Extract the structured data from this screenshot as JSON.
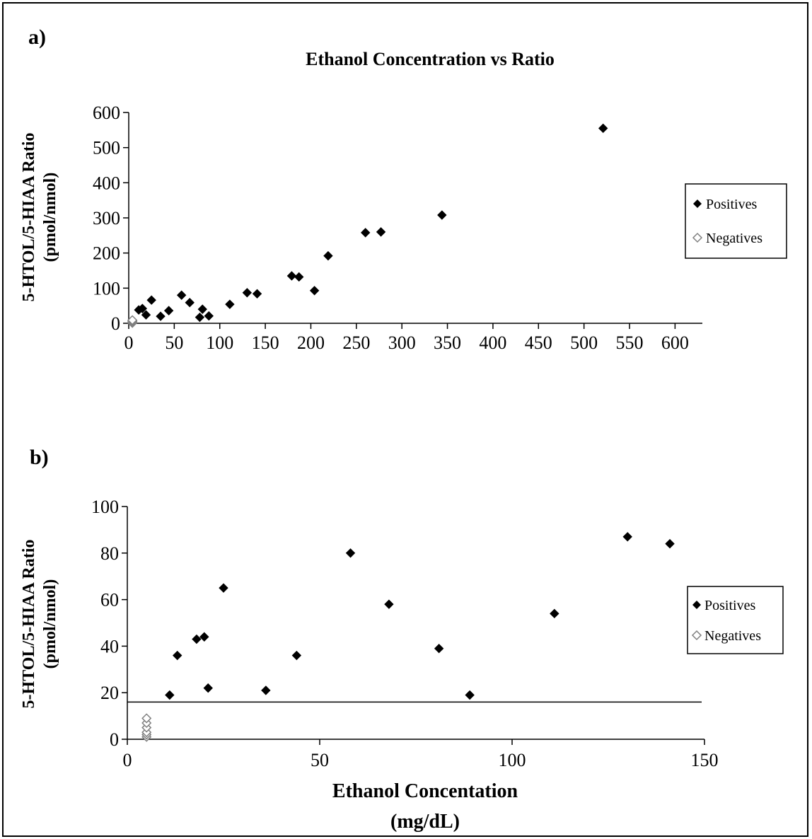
{
  "chart_data": [
    {
      "type": "scatter",
      "panel_label": "a)",
      "title": "Ethanol Concentration vs Ratio",
      "ylabel_line1": "5-HTOL/5-HIAA Ratio",
      "ylabel_line2": "(pmol/nmol)",
      "xlim": [
        0,
        630
      ],
      "ylim": [
        0,
        600
      ],
      "xticks": [
        0,
        50,
        100,
        150,
        200,
        250,
        300,
        350,
        400,
        450,
        500,
        550,
        600
      ],
      "yticks": [
        0,
        100,
        200,
        300,
        400,
        500,
        600
      ],
      "legend": {
        "placement": "right",
        "entries": [
          "Positives",
          "Negatives"
        ]
      },
      "series": [
        {
          "name": "Positives",
          "color": "#000000",
          "marker": "filled-diamond",
          "points": [
            [
              11,
              38
            ],
            [
              15,
              42
            ],
            [
              19,
              24
            ],
            [
              25,
              66
            ],
            [
              35,
              20
            ],
            [
              44,
              36
            ],
            [
              58,
              80
            ],
            [
              67,
              59
            ],
            [
              78,
              17
            ],
            [
              81,
              40
            ],
            [
              88,
              21
            ],
            [
              111,
              54
            ],
            [
              130,
              87
            ],
            [
              141,
              84
            ],
            [
              179,
              135
            ],
            [
              187,
              132
            ],
            [
              204,
              93
            ],
            [
              219,
              192
            ],
            [
              260,
              258
            ],
            [
              277,
              260
            ],
            [
              344,
              308
            ],
            [
              521,
              555
            ]
          ]
        },
        {
          "name": "Negatives",
          "color": "#808080",
          "marker": "open-diamond",
          "points": [
            [
              4,
              1
            ],
            [
              4,
              3
            ],
            [
              4,
              5
            ],
            [
              4,
              7
            ],
            [
              4,
              9
            ]
          ]
        }
      ]
    },
    {
      "type": "scatter",
      "panel_label": "b)",
      "title": "",
      "ylabel_line1": "5-HTOL/5-HIAA Ratio",
      "ylabel_line2": "(pmol/nmol)",
      "xlabel_line1": "Ethanol Concentation",
      "xlabel_line2": "(mg/dL)",
      "xlim": [
        0,
        150
      ],
      "ylim": [
        0,
        100
      ],
      "xticks": [
        0,
        50,
        100,
        150
      ],
      "yticks": [
        0,
        20,
        40,
        60,
        80,
        100
      ],
      "threshold": 16,
      "legend": {
        "placement": "right",
        "entries": [
          "Positives",
          "Negatives"
        ]
      },
      "series": [
        {
          "name": "Positives",
          "color": "#000000",
          "marker": "filled-diamond",
          "points": [
            [
              11,
              19
            ],
            [
              13,
              36
            ],
            [
              18,
              43
            ],
            [
              20,
              44
            ],
            [
              21,
              22
            ],
            [
              25,
              65
            ],
            [
              36,
              21
            ],
            [
              44,
              36
            ],
            [
              58,
              80
            ],
            [
              68,
              58
            ],
            [
              81,
              39
            ],
            [
              89,
              19
            ],
            [
              111,
              54
            ],
            [
              130,
              87
            ],
            [
              141,
              84
            ]
          ]
        },
        {
          "name": "Negatives",
          "color": "#808080",
          "marker": "open-diamond",
          "points": [
            [
              5,
              1
            ],
            [
              5,
              2
            ],
            [
              5,
              3
            ],
            [
              5,
              5
            ],
            [
              5,
              7
            ],
            [
              5,
              9
            ]
          ]
        }
      ]
    }
  ]
}
